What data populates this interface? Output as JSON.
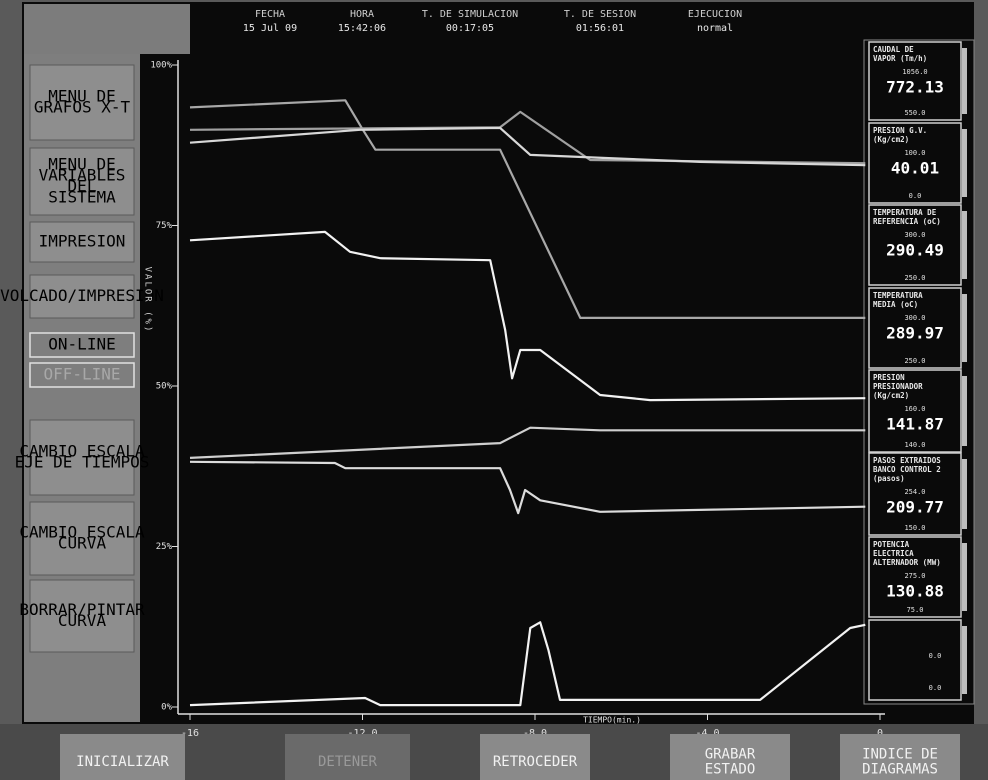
{
  "header": {
    "fields": [
      {
        "label": "FECHA",
        "value": "15 Jul 09"
      },
      {
        "label": "HORA",
        "value": "15:42:06"
      },
      {
        "label": "T. DE SIMULACION",
        "value": "00:17:05"
      },
      {
        "label": "T. DE SESION",
        "value": "01:56:01"
      },
      {
        "label": "EJECUCION",
        "value": "normal"
      }
    ]
  },
  "left_menu": [
    [
      "MENU DE",
      "GRAFOS X-T"
    ],
    [
      "MENU DE",
      "VARIABLES",
      "DEL",
      "SISTEMA"
    ],
    [
      "IMPRESION"
    ],
    [
      "VOLCADO/IMPRESION"
    ],
    [
      "ON-LINE"
    ],
    [
      "OFF-LINE"
    ],
    [
      "CAMBIO ESCALA",
      "EJE DE TIEMPOS"
    ],
    [
      "CAMBIO ESCALA",
      "CURVA"
    ],
    [
      "BORRAR/PINTAR",
      "CURVA"
    ]
  ],
  "chart_data": {
    "type": "line",
    "ylabel": "VALOR (%)",
    "xlabel": "TIEMPO(min.)",
    "xlim": [
      -16,
      0
    ],
    "ylim": [
      0,
      100
    ],
    "xticks": [
      -16,
      {
        "value": -12,
        "label": "-12.0"
      },
      {
        "value": -8,
        "label": "-8.0"
      },
      {
        "value": -4,
        "label": "-4.0"
      },
      0
    ],
    "yticks": [
      {
        "value": 0,
        "label": "0%"
      },
      {
        "value": 25,
        "label": "25%"
      },
      {
        "value": 50,
        "label": "50%"
      },
      {
        "value": 75,
        "label": "75%"
      },
      {
        "value": 100,
        "label": "100%"
      }
    ],
    "series": [
      {
        "color": "#a8a8a8",
        "x": [
          -16,
          -12.4,
          -12.0,
          -11.7,
          -8.81,
          -6.95,
          -0.34
        ],
        "values": [
          93.4,
          94.5,
          90.0,
          86.8,
          86.8,
          60.6,
          60.6
        ]
      },
      {
        "color": "#a0a0a0",
        "x": [
          -16,
          -8.81,
          -8.34,
          -6.72,
          -0.34
        ],
        "values": [
          89.9,
          90.3,
          92.7,
          85.2,
          84.7
        ]
      },
      {
        "color": "#d8d8d8",
        "x": [
          -16,
          -12.06,
          -8.81,
          -8.11,
          -4.17,
          -0.34
        ],
        "values": [
          87.9,
          89.9,
          90.2,
          86.0,
          84.9,
          84.4
        ]
      },
      {
        "color": "#f2f2f2",
        "x": [
          -16,
          -12.87,
          -12.29,
          -11.59,
          -9.04,
          -8.69,
          -8.53,
          -8.34,
          -7.88,
          -6.49,
          -5.33,
          -0.34
        ],
        "values": [
          72.7,
          74.0,
          70.9,
          69.9,
          69.6,
          58.7,
          51.2,
          55.6,
          55.6,
          48.6,
          47.8,
          48.1
        ]
      },
      {
        "color": "#cfcfcf",
        "x": [
          -16,
          -8.81,
          -8.11,
          -6.49,
          -0.34
        ],
        "values": [
          38.8,
          41.1,
          43.5,
          43.1,
          43.1
        ]
      },
      {
        "color": "#dcdcdc",
        "x": [
          -16,
          -12.64,
          -12.4,
          -8.81,
          -8.58,
          -8.39,
          -8.23,
          -7.88,
          -6.49,
          -0.34
        ],
        "values": [
          38.2,
          38.0,
          37.2,
          37.2,
          33.8,
          30.2,
          33.8,
          32.2,
          30.4,
          31.2
        ]
      },
      {
        "color": "#f2f2f2",
        "x": [
          -16,
          -11.94,
          -11.59,
          -8.34,
          -8.11,
          -7.88,
          -7.69,
          -7.42,
          -2.78,
          -0.69,
          -0.34
        ],
        "values": [
          0.3,
          1.4,
          0.3,
          0.3,
          12.3,
          13.2,
          8.9,
          1.1,
          1.1,
          12.3,
          12.8
        ]
      }
    ]
  },
  "indicators": [
    {
      "title": [
        "CAUDAL DE",
        "VAPOR (Tm/h)"
      ],
      "max": "1056.0",
      "value": "772.13",
      "min": "550.0"
    },
    {
      "title": [
        "PRESION G.V.",
        "(Kg/cm2)"
      ],
      "max": "100.0",
      "value": "40.01",
      "min": "0.0"
    },
    {
      "title": [
        "TEMPERATURA DE",
        "REFERENCIA (oC)"
      ],
      "max": "300.0",
      "value": "290.49",
      "min": "250.0"
    },
    {
      "title": [
        "TEMPERATURA",
        "MEDIA (oC)"
      ],
      "max": "300.0",
      "value": "289.97",
      "min": "250.0"
    },
    {
      "title": [
        "PRESION",
        "PRESIONADOR",
        "(Kg/cm2)"
      ],
      "max": "160.0",
      "value": "141.87",
      "min": "140.0"
    },
    {
      "title": [
        "PASOS EXTRAIDOS",
        "BANCO CONTROL 2",
        "(pasos)"
      ],
      "max": "254.0",
      "value": "209.77",
      "min": "150.0"
    },
    {
      "title": [
        "POTENCIA",
        "ELECTRICA",
        "ALTERNADOR (MW)"
      ],
      "max": "275.0",
      "value": "130.88",
      "min": "75.0"
    },
    {
      "title": [],
      "max": "0.0",
      "min": "0.0"
    }
  ],
  "bottom_buttons": [
    [
      "INICIALIZAR"
    ],
    [
      "DETENER"
    ],
    [
      "RETROCEDER"
    ],
    [
      "GRABAR",
      "ESTADO"
    ],
    [
      "INDICE DE",
      "DIAGRAMAS"
    ]
  ]
}
